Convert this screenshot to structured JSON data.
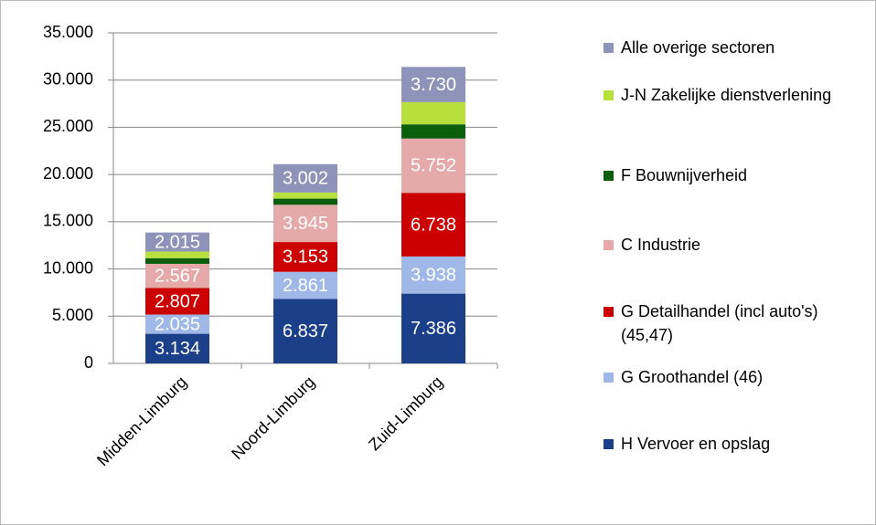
{
  "chart_data": {
    "type": "stacked_bar",
    "categories": [
      "Midden-Limburg",
      "Noord-Limburg",
      "Zuid-Limburg"
    ],
    "series": [
      {
        "name": "H Vervoer en opslag",
        "color": "#1c3f8a",
        "values": [
          3134,
          6837,
          7386
        ],
        "value_labels": [
          "3.134",
          "6.837",
          "7.386"
        ]
      },
      {
        "name": "G Groothandel (46)",
        "color": "#9fb8e8",
        "values": [
          2035,
          2861,
          3938
        ],
        "value_labels": [
          "2.035",
          "2.861",
          "3.938"
        ]
      },
      {
        "name": "G Detailhandel (incl auto's) (45,47)",
        "color": "#cc0000",
        "values": [
          2807,
          3153,
          6738
        ],
        "value_labels": [
          "2.807",
          "3.153",
          "6.738"
        ]
      },
      {
        "name": "C Industrie",
        "color": "#e6a9a9",
        "values": [
          2567,
          3945,
          5752
        ],
        "value_labels": [
          "2.567",
          "3.945",
          "5.752"
        ]
      },
      {
        "name": "F Bouwnijverheid",
        "color": "#0b5e0b",
        "values": [
          600,
          650,
          1500
        ]
      },
      {
        "name": "J-N Zakelijke dienstverlening",
        "color": "#b7e03c",
        "values": [
          700,
          650,
          2350
        ]
      },
      {
        "name": "Alle overige sectoren",
        "color": "#8d93b9",
        "values": [
          2015,
          3002,
          3730
        ],
        "value_labels": [
          "2.015",
          "3.002",
          "3.730"
        ]
      }
    ],
    "ylim": [
      0,
      35000
    ],
    "yticks": [
      0,
      {
        "value": 5000,
        "label": "5.000"
      },
      {
        "value": 10000,
        "label": "10.000"
      },
      {
        "value": 15000,
        "label": "15.000"
      },
      {
        "value": 20000,
        "label": "20.000"
      },
      {
        "value": 25000,
        "label": "25.000"
      },
      {
        "value": 30000,
        "label": "30.000"
      },
      {
        "value": 35000,
        "label": "35.000"
      }
    ],
    "grid": true
  }
}
